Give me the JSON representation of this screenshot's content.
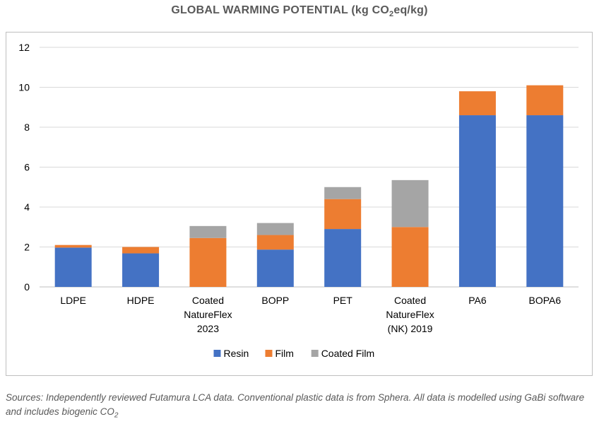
{
  "title": {
    "main": "GLOBAL WARMING POTENTIAL (kg CO",
    "sub": "2",
    "tail": "eq/kg)"
  },
  "footnote": {
    "text": "Sources: Independently reviewed Futamura LCA data. Conventional plastic data is from Sphera. All data is modelled using GaBi software and includes biogenic CO",
    "sub": "2"
  },
  "chart_data": {
    "type": "bar",
    "stacked": true,
    "categories": [
      [
        "LDPE"
      ],
      [
        "HDPE"
      ],
      [
        "Coated",
        "NatureFlex",
        "2023"
      ],
      [
        "BOPP"
      ],
      [
        "PET"
      ],
      [
        "Coated",
        "NatureFlex",
        "(NK) 2019"
      ],
      [
        "PA6"
      ],
      [
        "BOPA6"
      ]
    ],
    "series": [
      {
        "name": "Resin",
        "color": "#4472C4",
        "values": [
          1.97,
          1.68,
          0,
          1.87,
          2.9,
          0,
          8.6,
          8.6
        ]
      },
      {
        "name": "Film",
        "color": "#ED7D31",
        "values": [
          0.13,
          0.32,
          2.45,
          0.73,
          1.5,
          3.0,
          1.2,
          1.5
        ]
      },
      {
        "name": "Coated Film",
        "color": "#A5A5A5",
        "values": [
          0,
          0,
          0.6,
          0.6,
          0.6,
          2.35,
          0,
          0
        ]
      }
    ],
    "ylim": [
      0,
      12
    ],
    "yticks": [
      0,
      2,
      4,
      6,
      8,
      10,
      12
    ],
    "grid": true,
    "legend_position": "bottom"
  }
}
